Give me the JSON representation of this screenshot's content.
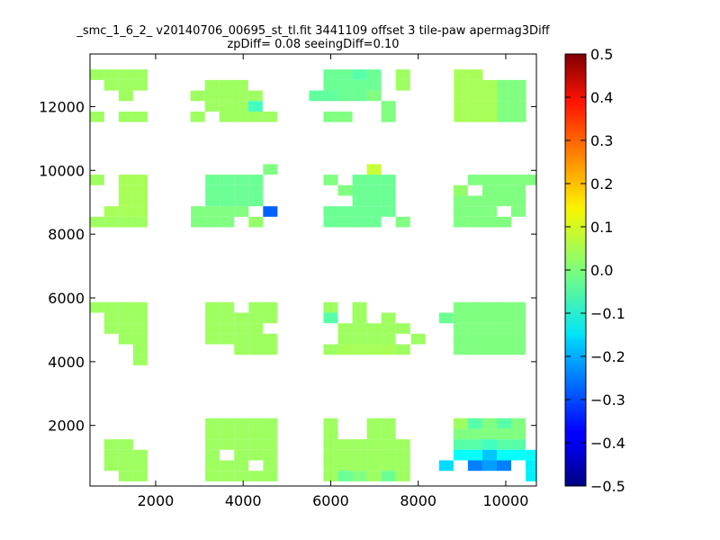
{
  "chart_data": {
    "type": "heatmap",
    "title": "_smc_1_6_2_ v20140706_00695_st_tl.fit 3441109 offset 3 tile-paw apermag3Diff",
    "subtitle": "zpDiff= 0.08 seeingDiff=0.10",
    "xlim": [
      500,
      10700
    ],
    "ylim": [
      100,
      13650
    ],
    "xticks": [
      2000,
      4000,
      6000,
      8000,
      10000
    ],
    "yticks": [
      2000,
      4000,
      6000,
      8000,
      10000,
      12000
    ],
    "grid": false,
    "colormap": "jet",
    "colorbar": {
      "range": [
        -0.5,
        0.5
      ],
      "ticks": [
        "0.5",
        "0.4",
        "0.3",
        "0.2",
        "0.1",
        "0.0",
        "−0.1",
        "−0.2",
        "−0.3",
        "−0.4",
        "−0.5"
      ]
    },
    "cell_size": 330,
    "cells": [
      [
        660,
        13000,
        0.03
      ],
      [
        990,
        13000,
        0.03
      ],
      [
        1320,
        13000,
        0.03
      ],
      [
        1650,
        13000,
        0.03
      ],
      [
        990,
        12670,
        0.03
      ],
      [
        1320,
        12670,
        0.03
      ],
      [
        1650,
        12670,
        0.03
      ],
      [
        1320,
        12340,
        0.03
      ],
      [
        660,
        11680,
        0.03
      ],
      [
        1320,
        11680,
        0.03
      ],
      [
        1650,
        11680,
        0.03
      ],
      [
        2960,
        12340,
        0.03
      ],
      [
        3290,
        12670,
        0.03
      ],
      [
        3620,
        12670,
        0.03
      ],
      [
        3950,
        12670,
        0.03
      ],
      [
        3290,
        12340,
        0.03
      ],
      [
        3620,
        12340,
        0.03
      ],
      [
        3950,
        12340,
        0.03
      ],
      [
        4280,
        12340,
        0.03
      ],
      [
        3290,
        12010,
        0.03
      ],
      [
        3620,
        12010,
        0.03
      ],
      [
        3950,
        12010,
        0.03
      ],
      [
        4280,
        12010,
        -0.06
      ],
      [
        2960,
        11680,
        0.03
      ],
      [
        3620,
        11680,
        0.03
      ],
      [
        3950,
        11680,
        0.03
      ],
      [
        4280,
        11680,
        0.03
      ],
      [
        4610,
        11680,
        0.03
      ],
      [
        6000,
        13000,
        -0.02
      ],
      [
        6330,
        13000,
        -0.02
      ],
      [
        6660,
        13000,
        -0.04
      ],
      [
        6990,
        13000,
        -0.02
      ],
      [
        6000,
        12670,
        -0.02
      ],
      [
        6330,
        12670,
        -0.02
      ],
      [
        6660,
        12670,
        -0.02
      ],
      [
        6990,
        12670,
        -0.02
      ],
      [
        5670,
        12340,
        -0.03
      ],
      [
        6000,
        12340,
        -0.03
      ],
      [
        6330,
        12340,
        -0.02
      ],
      [
        6660,
        12340,
        -0.02
      ],
      [
        6990,
        12340,
        0.0
      ],
      [
        7320,
        12010,
        0.0
      ],
      [
        6000,
        11680,
        0.0
      ],
      [
        6330,
        11680,
        0.0
      ],
      [
        7320,
        11680,
        0.0
      ],
      [
        7650,
        13000,
        0.03
      ],
      [
        7650,
        12670,
        0.03
      ],
      [
        8980,
        13000,
        0.04
      ],
      [
        9310,
        13000,
        0.04
      ],
      [
        8980,
        12670,
        0.04
      ],
      [
        9310,
        12670,
        0.04
      ],
      [
        9640,
        12670,
        0.04
      ],
      [
        9970,
        12670,
        0.0
      ],
      [
        10300,
        12670,
        0.0
      ],
      [
        8980,
        12340,
        0.04
      ],
      [
        9310,
        12340,
        0.04
      ],
      [
        9640,
        12340,
        0.04
      ],
      [
        9970,
        12340,
        0.0
      ],
      [
        10300,
        12340,
        0.0
      ],
      [
        8980,
        12010,
        0.04
      ],
      [
        9310,
        12010,
        0.04
      ],
      [
        9640,
        12010,
        0.04
      ],
      [
        9970,
        12010,
        0.0
      ],
      [
        10300,
        12010,
        0.0
      ],
      [
        8980,
        11680,
        0.04
      ],
      [
        9310,
        11680,
        0.04
      ],
      [
        9640,
        11680,
        0.04
      ],
      [
        9970,
        11680,
        0.0
      ],
      [
        10300,
        11680,
        0.0
      ],
      [
        660,
        9700,
        0.03
      ],
      [
        1320,
        9700,
        0.04
      ],
      [
        1650,
        9700,
        0.04
      ],
      [
        1320,
        9370,
        0.04
      ],
      [
        1650,
        9370,
        0.04
      ],
      [
        1320,
        9040,
        0.04
      ],
      [
        1650,
        9040,
        0.04
      ],
      [
        990,
        8710,
        0.04
      ],
      [
        1320,
        8710,
        0.04
      ],
      [
        1650,
        8710,
        0.04
      ],
      [
        660,
        8380,
        0.03
      ],
      [
        990,
        8380,
        0.03
      ],
      [
        1320,
        8380,
        0.03
      ],
      [
        1650,
        8380,
        0.03
      ],
      [
        3300,
        9700,
        -0.02
      ],
      [
        3630,
        9700,
        -0.02
      ],
      [
        3960,
        9700,
        -0.02
      ],
      [
        4290,
        9700,
        -0.02
      ],
      [
        3300,
        9370,
        -0.02
      ],
      [
        3630,
        9370,
        -0.02
      ],
      [
        3960,
        9370,
        -0.02
      ],
      [
        4290,
        9370,
        -0.02
      ],
      [
        3300,
        9040,
        -0.02
      ],
      [
        3630,
        9040,
        -0.02
      ],
      [
        3960,
        9040,
        -0.02
      ],
      [
        4290,
        9040,
        -0.02
      ],
      [
        2970,
        8710,
        0.0
      ],
      [
        3300,
        8710,
        0.0
      ],
      [
        3630,
        8710,
        0.0
      ],
      [
        3960,
        8710,
        0.0
      ],
      [
        4620,
        8710,
        -0.28
      ],
      [
        2970,
        8380,
        0.0
      ],
      [
        3300,
        8380,
        0.0
      ],
      [
        3630,
        8380,
        0.0
      ],
      [
        4290,
        8380,
        0.02
      ],
      [
        4620,
        10030,
        0.0
      ],
      [
        6000,
        9700,
        0.0
      ],
      [
        6660,
        9700,
        -0.02
      ],
      [
        6990,
        9700,
        -0.02
      ],
      [
        7320,
        9700,
        -0.02
      ],
      [
        6990,
        10030,
        0.07
      ],
      [
        6330,
        9370,
        0.0
      ],
      [
        6660,
        9370,
        -0.02
      ],
      [
        6990,
        9370,
        -0.02
      ],
      [
        7320,
        9370,
        -0.02
      ],
      [
        6660,
        9040,
        -0.02
      ],
      [
        6990,
        9040,
        -0.02
      ],
      [
        7320,
        9040,
        -0.02
      ],
      [
        6000,
        8710,
        -0.02
      ],
      [
        6330,
        8710,
        -0.02
      ],
      [
        6660,
        8710,
        -0.02
      ],
      [
        6990,
        8710,
        -0.02
      ],
      [
        7320,
        8710,
        -0.02
      ],
      [
        6000,
        8380,
        -0.02
      ],
      [
        6330,
        8380,
        -0.02
      ],
      [
        6660,
        8380,
        -0.02
      ],
      [
        6990,
        8380,
        -0.02
      ],
      [
        7650,
        8380,
        0.0
      ],
      [
        9300,
        9700,
        0.0
      ],
      [
        9630,
        9700,
        0.0
      ],
      [
        9960,
        9700,
        0.0
      ],
      [
        10290,
        9700,
        0.0
      ],
      [
        10620,
        9700,
        0.0
      ],
      [
        8970,
        9370,
        0.02
      ],
      [
        9630,
        9370,
        0.0
      ],
      [
        9960,
        9370,
        0.0
      ],
      [
        10290,
        9370,
        0.0
      ],
      [
        8970,
        9040,
        0.0
      ],
      [
        9300,
        9040,
        0.0
      ],
      [
        9630,
        9040,
        0.0
      ],
      [
        9960,
        9040,
        0.0
      ],
      [
        10290,
        9040,
        0.0
      ],
      [
        8970,
        8710,
        0.0
      ],
      [
        9300,
        8710,
        0.0
      ],
      [
        9630,
        8710,
        0.0
      ],
      [
        10290,
        8710,
        0.0
      ],
      [
        8970,
        8380,
        0.0
      ],
      [
        9300,
        8380,
        0.0
      ],
      [
        9630,
        8380,
        0.0
      ],
      [
        9960,
        8380,
        0.0
      ],
      [
        660,
        5700,
        0.03
      ],
      [
        990,
        5700,
        0.03
      ],
      [
        1320,
        5700,
        0.03
      ],
      [
        1650,
        5700,
        0.03
      ],
      [
        1650,
        5370,
        0.03
      ],
      [
        990,
        5370,
        0.03
      ],
      [
        1320,
        5370,
        0.03
      ],
      [
        990,
        5040,
        0.03
      ],
      [
        1320,
        5040,
        0.03
      ],
      [
        1650,
        5040,
        0.03
      ],
      [
        1320,
        4710,
        0.03
      ],
      [
        1650,
        4710,
        0.03
      ],
      [
        1650,
        4380,
        0.03
      ],
      [
        1320,
        4710,
        0.03
      ],
      [
        1650,
        4050,
        0.03
      ],
      [
        3300,
        5700,
        0.03
      ],
      [
        3630,
        5700,
        0.03
      ],
      [
        4290,
        5700,
        0.03
      ],
      [
        4620,
        5700,
        0.03
      ],
      [
        3300,
        5370,
        0.03
      ],
      [
        3630,
        5370,
        0.03
      ],
      [
        3960,
        5370,
        0.03
      ],
      [
        4290,
        5370,
        0.03
      ],
      [
        4620,
        5370,
        0.03
      ],
      [
        3300,
        5040,
        0.03
      ],
      [
        3630,
        5040,
        0.03
      ],
      [
        3960,
        5040,
        0.03
      ],
      [
        4290,
        5040,
        0.03
      ],
      [
        3300,
        4710,
        0.03
      ],
      [
        3630,
        4710,
        0.03
      ],
      [
        3960,
        4710,
        0.03
      ],
      [
        4290,
        4710,
        0.03
      ],
      [
        4620,
        4710,
        0.03
      ],
      [
        3960,
        4380,
        0.03
      ],
      [
        4290,
        4380,
        0.03
      ],
      [
        4620,
        4380,
        0.03
      ],
      [
        6000,
        5700,
        0.03
      ],
      [
        6660,
        5700,
        0.03
      ],
      [
        6000,
        5370,
        -0.04
      ],
      [
        6660,
        5370,
        0.03
      ],
      [
        7320,
        5370,
        0.03
      ],
      [
        6330,
        5040,
        0.03
      ],
      [
        6660,
        5040,
        0.03
      ],
      [
        6990,
        5040,
        0.03
      ],
      [
        7320,
        5040,
        0.03
      ],
      [
        7650,
        5040,
        0.03
      ],
      [
        6330,
        4710,
        0.03
      ],
      [
        6660,
        4710,
        0.03
      ],
      [
        6990,
        4710,
        0.03
      ],
      [
        7320,
        4710,
        0.03
      ],
      [
        8000,
        4710,
        0.03
      ],
      [
        6000,
        4380,
        0.03
      ],
      [
        6330,
        4380,
        0.04
      ],
      [
        6660,
        4380,
        0.04
      ],
      [
        6990,
        4380,
        0.04
      ],
      [
        7320,
        4380,
        0.04
      ],
      [
        7650,
        4380,
        0.03
      ],
      [
        8970,
        5700,
        0.0
      ],
      [
        9300,
        5700,
        0.0
      ],
      [
        9630,
        5700,
        0.0
      ],
      [
        9960,
        5700,
        0.0
      ],
      [
        10290,
        5700,
        0.0
      ],
      [
        8640,
        5370,
        -0.02
      ],
      [
        8970,
        5370,
        0.0
      ],
      [
        9300,
        5370,
        0.0
      ],
      [
        9630,
        5370,
        0.0
      ],
      [
        9960,
        5370,
        0.0
      ],
      [
        10290,
        5370,
        0.0
      ],
      [
        8970,
        5040,
        0.0
      ],
      [
        9300,
        5040,
        0.0
      ],
      [
        9630,
        5040,
        0.0
      ],
      [
        9960,
        5040,
        0.0
      ],
      [
        10290,
        5040,
        0.0
      ],
      [
        8970,
        4710,
        0.0
      ],
      [
        9300,
        4710,
        0.0
      ],
      [
        9630,
        4710,
        0.0
      ],
      [
        9960,
        4710,
        0.0
      ],
      [
        10290,
        4710,
        0.0
      ],
      [
        8970,
        4380,
        0.0
      ],
      [
        9300,
        4380,
        0.0
      ],
      [
        9630,
        4380,
        0.0
      ],
      [
        9960,
        4380,
        0.0
      ],
      [
        10290,
        4380,
        0.0
      ],
      [
        990,
        1400,
        0.03
      ],
      [
        1320,
        1400,
        0.03
      ],
      [
        1650,
        1070,
        0.03
      ],
      [
        990,
        1070,
        0.03
      ],
      [
        1320,
        1070,
        0.03
      ],
      [
        990,
        740,
        0.03
      ],
      [
        1320,
        740,
        0.03
      ],
      [
        1650,
        740,
        0.03
      ],
      [
        1320,
        410,
        0.03
      ],
      [
        1650,
        410,
        0.03
      ],
      [
        3300,
        2060,
        0.03
      ],
      [
        3630,
        2060,
        0.03
      ],
      [
        3960,
        2060,
        0.03
      ],
      [
        4290,
        2060,
        0.03
      ],
      [
        4620,
        2060,
        0.03
      ],
      [
        3300,
        1730,
        0.03
      ],
      [
        3630,
        1730,
        0.03
      ],
      [
        3960,
        1730,
        0.03
      ],
      [
        4290,
        1730,
        0.03
      ],
      [
        4620,
        1730,
        0.03
      ],
      [
        3300,
        1400,
        0.03
      ],
      [
        3630,
        1400,
        0.03
      ],
      [
        3960,
        1400,
        0.03
      ],
      [
        4290,
        1400,
        0.03
      ],
      [
        4620,
        1400,
        0.03
      ],
      [
        3300,
        1070,
        0.03
      ],
      [
        3960,
        1070,
        0.03
      ],
      [
        4290,
        1070,
        0.03
      ],
      [
        4620,
        1070,
        0.03
      ],
      [
        3300,
        740,
        0.03
      ],
      [
        3630,
        740,
        0.03
      ],
      [
        3960,
        740,
        0.03
      ],
      [
        4620,
        740,
        0.03
      ],
      [
        3300,
        410,
        0.03
      ],
      [
        3630,
        410,
        0.03
      ],
      [
        3960,
        410,
        0.03
      ],
      [
        4290,
        410,
        0.03
      ],
      [
        4620,
        410,
        0.03
      ],
      [
        6000,
        2060,
        0.03
      ],
      [
        6990,
        2060,
        0.03
      ],
      [
        7320,
        2060,
        0.03
      ],
      [
        6000,
        1730,
        0.03
      ],
      [
        6330,
        1400,
        0.03
      ],
      [
        6660,
        1400,
        0.03
      ],
      [
        6000,
        1400,
        0.03
      ],
      [
        6990,
        1730,
        0.03
      ],
      [
        7320,
        1730,
        0.03
      ],
      [
        6990,
        1400,
        0.03
      ],
      [
        7320,
        1400,
        0.03
      ],
      [
        7650,
        1400,
        0.03
      ],
      [
        6000,
        1070,
        0.03
      ],
      [
        6330,
        1070,
        0.03
      ],
      [
        6660,
        1070,
        0.03
      ],
      [
        6990,
        1070,
        0.03
      ],
      [
        7320,
        1070,
        0.03
      ],
      [
        7650,
        1070,
        0.03
      ],
      [
        6000,
        740,
        0.03
      ],
      [
        6330,
        740,
        0.03
      ],
      [
        6660,
        740,
        0.03
      ],
      [
        6990,
        740,
        0.03
      ],
      [
        7320,
        740,
        0.03
      ],
      [
        7650,
        740,
        0.03
      ],
      [
        6000,
        410,
        0.03
      ],
      [
        6330,
        410,
        -0.02
      ],
      [
        6660,
        410,
        0.0
      ],
      [
        6990,
        410,
        0.03
      ],
      [
        7320,
        410,
        -0.02
      ],
      [
        7650,
        410,
        0.03
      ],
      [
        8970,
        2060,
        0.03
      ],
      [
        9300,
        2060,
        -0.04
      ],
      [
        9630,
        2060,
        0.0
      ],
      [
        9960,
        2060,
        -0.04
      ],
      [
        10290,
        2060,
        0.0
      ],
      [
        8970,
        1730,
        0.0
      ],
      [
        9300,
        1730,
        0.0
      ],
      [
        9630,
        1730,
        0.0
      ],
      [
        9960,
        1730,
        0.0
      ],
      [
        10290,
        1730,
        0.0
      ],
      [
        8970,
        1400,
        -0.04
      ],
      [
        9300,
        1400,
        -0.04
      ],
      [
        9630,
        1400,
        -0.06
      ],
      [
        9960,
        1400,
        -0.04
      ],
      [
        10290,
        1400,
        -0.04
      ],
      [
        8970,
        1070,
        -0.12
      ],
      [
        9300,
        1070,
        -0.12
      ],
      [
        9630,
        1070,
        -0.18
      ],
      [
        9960,
        1070,
        -0.12
      ],
      [
        10290,
        1070,
        -0.12
      ],
      [
        8640,
        740,
        -0.16
      ],
      [
        9300,
        740,
        -0.25
      ],
      [
        9630,
        740,
        -0.22
      ],
      [
        9960,
        740,
        -0.25
      ],
      [
        10620,
        740,
        -0.14
      ],
      [
        10620,
        410,
        -0.14
      ],
      [
        10620,
        1070,
        -0.12
      ]
    ]
  }
}
